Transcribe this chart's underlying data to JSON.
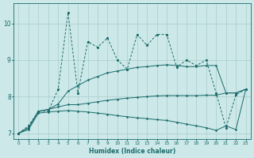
{
  "xlabel": "Humidex (Indice chaleur)",
  "x": [
    0,
    1,
    2,
    3,
    4,
    5,
    6,
    7,
    8,
    9,
    10,
    11,
    12,
    13,
    14,
    15,
    16,
    17,
    18,
    19,
    20,
    21,
    22,
    23
  ],
  "line_jagged": [
    7.0,
    7.2,
    7.6,
    7.6,
    8.2,
    10.3,
    8.1,
    9.5,
    9.35,
    9.6,
    9.0,
    8.75,
    9.7,
    9.4,
    9.7,
    9.7,
    8.8,
    9.0,
    8.85,
    9.0,
    8.1,
    7.15,
    8.05,
    8.2
  ],
  "line_upper": [
    7.0,
    7.15,
    7.6,
    7.65,
    7.8,
    8.15,
    8.3,
    8.45,
    8.55,
    8.65,
    8.7,
    8.75,
    8.8,
    8.82,
    8.85,
    8.87,
    8.85,
    8.82,
    8.82,
    8.85,
    8.85,
    8.1,
    8.1,
    8.2
  ],
  "line_mid": [
    7.0,
    7.15,
    7.6,
    7.65,
    7.72,
    7.78,
    7.78,
    7.82,
    7.86,
    7.9,
    7.93,
    7.96,
    7.98,
    8.0,
    8.02,
    8.03,
    8.03,
    8.03,
    8.03,
    8.04,
    8.04,
    8.1,
    8.1,
    8.2
  ],
  "line_lower": [
    7.0,
    7.1,
    7.55,
    7.58,
    7.6,
    7.62,
    7.6,
    7.58,
    7.55,
    7.52,
    7.48,
    7.45,
    7.42,
    7.4,
    7.37,
    7.35,
    7.3,
    7.25,
    7.2,
    7.15,
    7.08,
    7.2,
    7.1,
    8.2
  ],
  "color": "#1a6b6b",
  "bg_color": "#cce8e8",
  "grid_color": "#aacccc",
  "ylim": [
    6.85,
    10.55
  ],
  "xlim": [
    -0.5,
    23.5
  ],
  "yticks": [
    7,
    8,
    9,
    10
  ],
  "xticks": [
    0,
    1,
    2,
    3,
    4,
    5,
    6,
    7,
    8,
    9,
    10,
    11,
    12,
    13,
    14,
    15,
    16,
    17,
    18,
    19,
    20,
    21,
    22,
    23
  ]
}
